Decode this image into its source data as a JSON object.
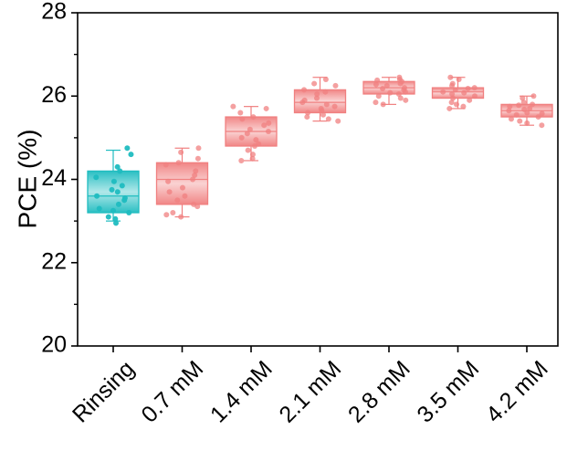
{
  "chart_data": {
    "type": "box",
    "title": "",
    "xlabel": "",
    "ylabel": "PCE (%)",
    "ylim": [
      20,
      28
    ],
    "yticks": [
      20,
      22,
      24,
      26,
      28
    ],
    "grid": false,
    "colors": {
      "Rinsing": "#1fbcc0",
      "concentration": "#f08080"
    },
    "categories": [
      "Rinsing",
      "0.7 mM",
      "1.4 mM",
      "2.1 mM",
      "2.8 mM",
      "3.5 mM",
      "4.2 mM"
    ],
    "boxes": [
      {
        "name": "Rinsing",
        "whisker_low": 23.0,
        "q1": 23.2,
        "median": 23.6,
        "q3": 24.2,
        "whisker_high": 24.7,
        "points": [
          24.75,
          24.6,
          24.3,
          24.2,
          24.05,
          23.95,
          23.85,
          23.75,
          23.7,
          23.6,
          23.55,
          23.5,
          23.4,
          23.3,
          23.25,
          23.2,
          23.1,
          23.05,
          22.95
        ]
      },
      {
        "name": "0.7 mM",
        "whisker_low": 23.1,
        "q1": 23.4,
        "median": 24.0,
        "q3": 24.4,
        "whisker_high": 24.75,
        "points": [
          24.75,
          24.65,
          24.5,
          24.4,
          24.35,
          24.2,
          24.1,
          24.0,
          23.95,
          23.8,
          23.7,
          23.6,
          23.5,
          23.4,
          23.35,
          23.2,
          23.15,
          23.1
        ]
      },
      {
        "name": "1.4 mM",
        "whisker_low": 24.45,
        "q1": 24.8,
        "median": 25.15,
        "q3": 25.5,
        "whisker_high": 25.75,
        "points": [
          25.75,
          25.7,
          25.6,
          25.5,
          25.45,
          25.35,
          25.3,
          25.2,
          25.15,
          25.1,
          25.0,
          24.95,
          24.85,
          24.8,
          24.7,
          24.6,
          24.5,
          24.45
        ]
      },
      {
        "name": "2.1 mM",
        "whisker_low": 25.4,
        "q1": 25.6,
        "median": 25.85,
        "q3": 26.15,
        "whisker_high": 26.45,
        "points": [
          26.4,
          26.3,
          26.25,
          26.15,
          26.1,
          26.05,
          25.95,
          25.9,
          25.85,
          25.8,
          25.75,
          25.7,
          25.65,
          25.6,
          25.55,
          25.5,
          25.45,
          25.4
        ]
      },
      {
        "name": "2.8 mM",
        "whisker_low": 25.8,
        "q1": 26.05,
        "median": 26.2,
        "q3": 26.35,
        "whisker_high": 26.45,
        "points": [
          26.45,
          26.4,
          26.38,
          26.35,
          26.3,
          26.28,
          26.25,
          26.2,
          26.18,
          26.15,
          26.1,
          26.08,
          26.05,
          26.0,
          25.95,
          25.9,
          25.85,
          25.8
        ]
      },
      {
        "name": "3.5 mM",
        "whisker_low": 25.7,
        "q1": 25.95,
        "median": 26.1,
        "q3": 26.2,
        "whisker_high": 26.45,
        "points": [
          26.45,
          26.4,
          26.3,
          26.25,
          26.2,
          26.18,
          26.15,
          26.1,
          26.08,
          26.05,
          26.0,
          25.95,
          25.9,
          25.85,
          25.8,
          25.75,
          25.7
        ]
      },
      {
        "name": "4.2 mM",
        "whisker_low": 25.3,
        "q1": 25.5,
        "median": 25.65,
        "q3": 25.8,
        "whisker_high": 26.0,
        "points": [
          26.0,
          25.95,
          25.85,
          25.8,
          25.78,
          25.75,
          25.7,
          25.68,
          25.65,
          25.6,
          25.58,
          25.55,
          25.5,
          25.45,
          25.4,
          25.35,
          25.3
        ]
      }
    ]
  }
}
